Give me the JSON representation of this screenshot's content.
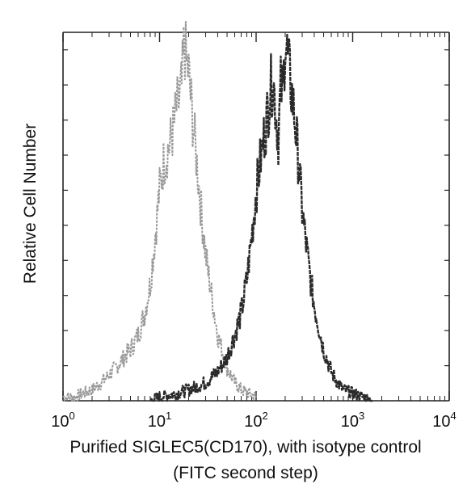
{
  "chart_data": {
    "type": "area",
    "title": "",
    "xlabel": "Purified  SIGLEC5(CD170), with isotype control",
    "xlabel_line2": "(FITC second step)",
    "ylabel": "Relative Cell Number",
    "xscale": "log",
    "xlim": [
      1,
      10000
    ],
    "ylim": [
      0,
      100
    ],
    "grid": false,
    "legend": "none",
    "x_ticks": [
      {
        "base": "10",
        "exp": "0"
      },
      {
        "base": "10",
        "exp": "1"
      },
      {
        "base": "10",
        "exp": "2"
      },
      {
        "base": "10",
        "exp": "3"
      },
      {
        "base": "10",
        "exp": "4"
      }
    ],
    "series": [
      {
        "color": "#9a9a9a",
        "x": [
          1,
          1.3,
          1.6,
          2,
          2.5,
          3,
          3.5,
          4,
          5,
          6,
          7,
          8,
          9,
          10,
          11,
          12,
          13,
          14,
          15,
          16,
          17,
          18,
          19,
          20,
          22,
          24,
          27,
          30,
          35,
          40,
          50,
          60,
          70,
          85,
          100
        ],
        "y": [
          1,
          1,
          2,
          3,
          5,
          7,
          9,
          11,
          14,
          18,
          24,
          32,
          45,
          58,
          65,
          68,
          71,
          75,
          80,
          82,
          86,
          99,
          92,
          90,
          77,
          67,
          52,
          40,
          28,
          18,
          9,
          5,
          3,
          2,
          1
        ]
      },
      {
        "color": "#2a2a2a",
        "x": [
          8,
          10,
          15,
          20,
          25,
          30,
          40,
          50,
          60,
          70,
          80,
          90,
          100,
          110,
          120,
          130,
          140,
          150,
          160,
          170,
          180,
          190,
          200,
          220,
          240,
          260,
          280,
          300,
          350,
          400,
          500,
          600,
          700,
          800,
          1000,
          1300,
          1600
        ],
        "y": [
          0,
          1,
          2,
          3,
          4,
          5,
          8,
          12,
          18,
          24,
          33,
          45,
          57,
          65,
          72,
          78,
          85,
          88,
          79,
          72,
          86,
          84,
          100,
          90,
          82,
          73,
          63,
          52,
          37,
          26,
          14,
          8,
          5,
          3,
          2,
          1,
          0
        ]
      }
    ]
  }
}
